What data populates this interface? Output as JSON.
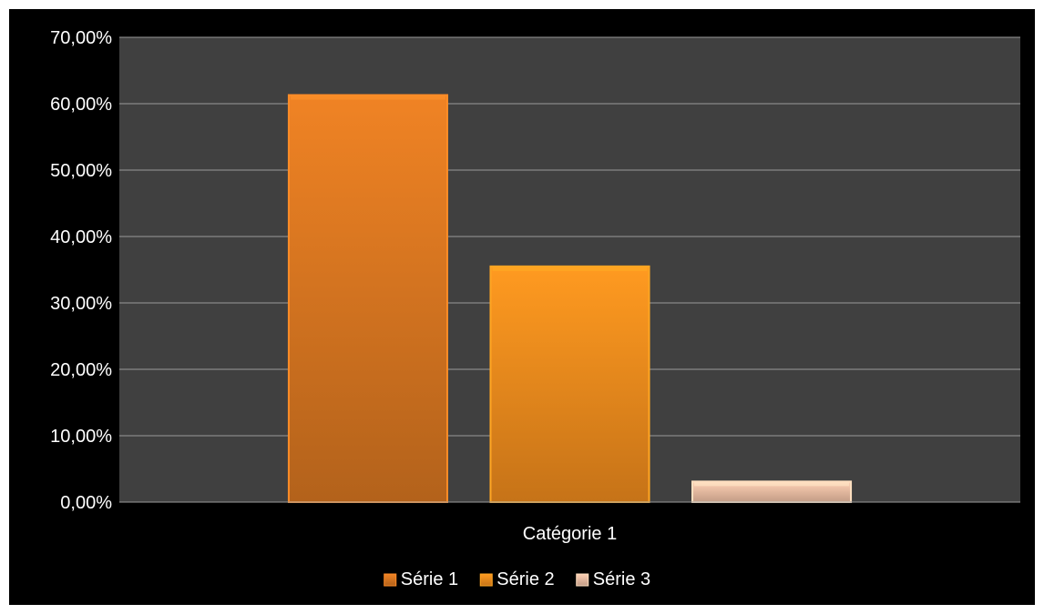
{
  "chart_data": {
    "type": "bar",
    "categories": [
      "Catégorie 1"
    ],
    "series": [
      {
        "name": "Série 1",
        "values": [
          61.3
        ],
        "color": "#e07a22"
      },
      {
        "name": "Série 2",
        "values": [
          35.5
        ],
        "color": "#f7901e"
      },
      {
        "name": "Série 3",
        "values": [
          3.1
        ],
        "color": "#f2c3a8"
      }
    ],
    "ylim": [
      0,
      70
    ],
    "yticks": [
      0,
      10,
      20,
      30,
      40,
      50,
      60,
      70
    ],
    "ytick_labels": [
      "0,00%",
      "10,00%",
      "20,00%",
      "30,00%",
      "40,00%",
      "50,00%",
      "60,00%",
      "70,00%"
    ],
    "grid": true,
    "legend_position": "bottom",
    "plot_background": "#404040",
    "chart_background": "#000000",
    "gridline_color": "#9a9a9a"
  }
}
